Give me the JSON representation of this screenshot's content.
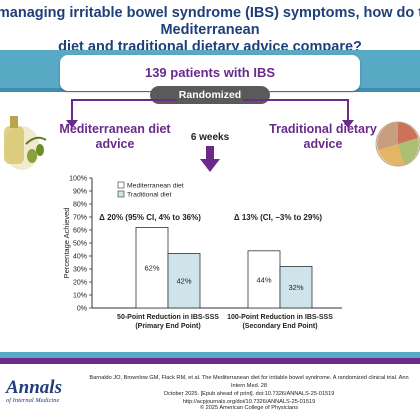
{
  "header": {
    "title_line1": "In managing irritable bowel syndrome (IBS) symptoms, how do the Mediterranean",
    "title_line2": "diet and traditional dietary advice compare?"
  },
  "study": {
    "patients": "139 patients with IBS",
    "randomized": "Randomized",
    "arm_left": "Mediterranean diet advice",
    "arm_right": "Traditional dietary advice",
    "duration": "6 weeks"
  },
  "colors": {
    "header_text": "#1f3f7a",
    "accent_purple": "#6a2a8c",
    "band_blue": "#57a9c4",
    "traditional_bar": "#cfe3ea",
    "mediterranean_bar": "#ffffff"
  },
  "chart_data": {
    "type": "bar",
    "ylabel": "Percentage Achieved",
    "ylim": [
      0,
      100
    ],
    "yticks": [
      "0%",
      "10%",
      "20%",
      "30%",
      "40%",
      "50%",
      "60%",
      "70%",
      "80%",
      "90%",
      "100%"
    ],
    "legend": [
      "Mediterranean diet",
      "Traditional diet"
    ],
    "categories": [
      {
        "line1": "50-Point Reduction in IBS-SSS",
        "line2": "(Primary End Point)"
      },
      {
        "line1": "100-Point Reduction in IBS-SSS",
        "line2": "(Secondary End Point)"
      }
    ],
    "series": [
      {
        "name": "Mediterranean diet",
        "values": [
          62,
          44
        ],
        "labels": [
          "62%",
          "44%"
        ]
      },
      {
        "name": "Traditional diet",
        "values": [
          42,
          32
        ],
        "labels": [
          "42%",
          "32%"
        ]
      }
    ],
    "annotations": [
      "Δ 20% (95% CI, 4% to 36%)",
      "Δ 13% (CI, −3% to 29%)"
    ]
  },
  "footer": {
    "logo": "Annals",
    "logo_sub": "of Internal Medicine",
    "citation_line1": "Barnaldo JO, Brownlow GM, Flack RM, et al. The Mediterranean diet for irritable bowel syndrome. A randomized clinical trial. Ann Intern Med. 28",
    "citation_line2": "October 2025. [Epub ahead of print]. doi:10.7326/ANNALS-25-01519",
    "citation_line3": "http://acpjournals.org/doi/10.7326/ANNALS-25-01519",
    "copyright": "© 2025 American College of Physicians"
  }
}
